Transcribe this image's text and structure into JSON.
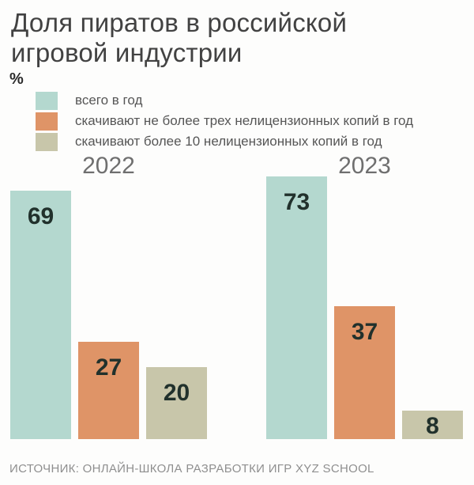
{
  "title_lines": [
    "Доля пиратов в российской",
    "игровой индустрии"
  ],
  "unit_label": "%",
  "source": "ИСТОЧНИК: ОНЛАЙН-ШКОЛА РАЗРАБОТКИ ИГР XYZ SCHOOL",
  "chart_data": {
    "type": "bar",
    "title": "Доля пиратов в российской игровой индустрии",
    "value_unit": "%",
    "categories": [
      "2022",
      "2023"
    ],
    "series": [
      {
        "name": "всего в год",
        "color": "#b4d8cf",
        "values": [
          69,
          73
        ]
      },
      {
        "name": "скачивают не более трех нелицензионных копий в год",
        "color": "#df9467",
        "values": [
          27,
          37
        ]
      },
      {
        "name": "скачивают более 10 нелицензионных копий в год",
        "color": "#c8c6aa",
        "values": [
          20,
          8
        ]
      }
    ],
    "value_labels_shown": true,
    "legend_position": "top-left",
    "axes_shown": false,
    "grid": false
  },
  "colors": {
    "background": "#fdfdfc",
    "title_text": "#424242",
    "year_label_text": "#6f6f6f",
    "legend_text": "#565656",
    "bar_value_text": "#21312c",
    "source_text": "#8f8f8f"
  }
}
